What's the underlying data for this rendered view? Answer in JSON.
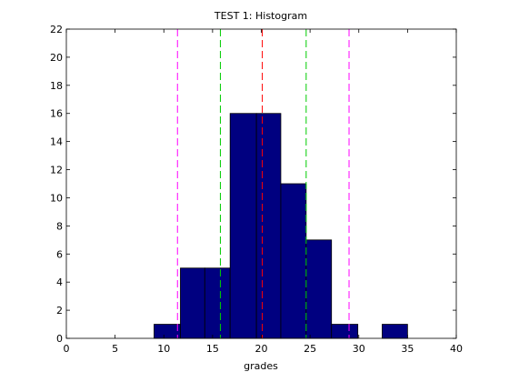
{
  "figure_background": "#ffffff",
  "chart_data": {
    "type": "bar",
    "title": "TEST 1: Histogram",
    "xlabel": "grades",
    "ylabel": "",
    "xlim": [
      0,
      40
    ],
    "ylim": [
      0,
      22
    ],
    "grid": false,
    "x_ticks": [
      0,
      5,
      10,
      15,
      20,
      25,
      30,
      35,
      40
    ],
    "y_ticks": [
      0,
      2,
      4,
      6,
      8,
      10,
      12,
      14,
      16,
      18,
      20,
      22
    ],
    "bar_color": "#000080",
    "bar_edge_color": "#000000",
    "bins": [
      {
        "start": 9.0,
        "end": 11.7,
        "count": 1
      },
      {
        "start": 11.7,
        "end": 14.2,
        "count": 5
      },
      {
        "start": 14.2,
        "end": 16.8,
        "count": 5
      },
      {
        "start": 16.8,
        "end": 19.5,
        "count": 16
      },
      {
        "start": 19.5,
        "end": 22.0,
        "count": 16
      },
      {
        "start": 22.0,
        "end": 24.6,
        "count": 11
      },
      {
        "start": 24.6,
        "end": 27.2,
        "count": 7
      },
      {
        "start": 27.2,
        "end": 29.9,
        "count": 1
      },
      {
        "start": 29.9,
        "end": 32.4,
        "count": 0
      },
      {
        "start": 32.4,
        "end": 35.0,
        "count": 1
      }
    ],
    "reference_lines": [
      {
        "x": 11.4,
        "color": "#ff00ff"
      },
      {
        "x": 15.8,
        "color": "#00cc00"
      },
      {
        "x": 20.1,
        "color": "#ff0000"
      },
      {
        "x": 24.6,
        "color": "#00cc00"
      },
      {
        "x": 29.0,
        "color": "#ff00ff"
      }
    ]
  }
}
